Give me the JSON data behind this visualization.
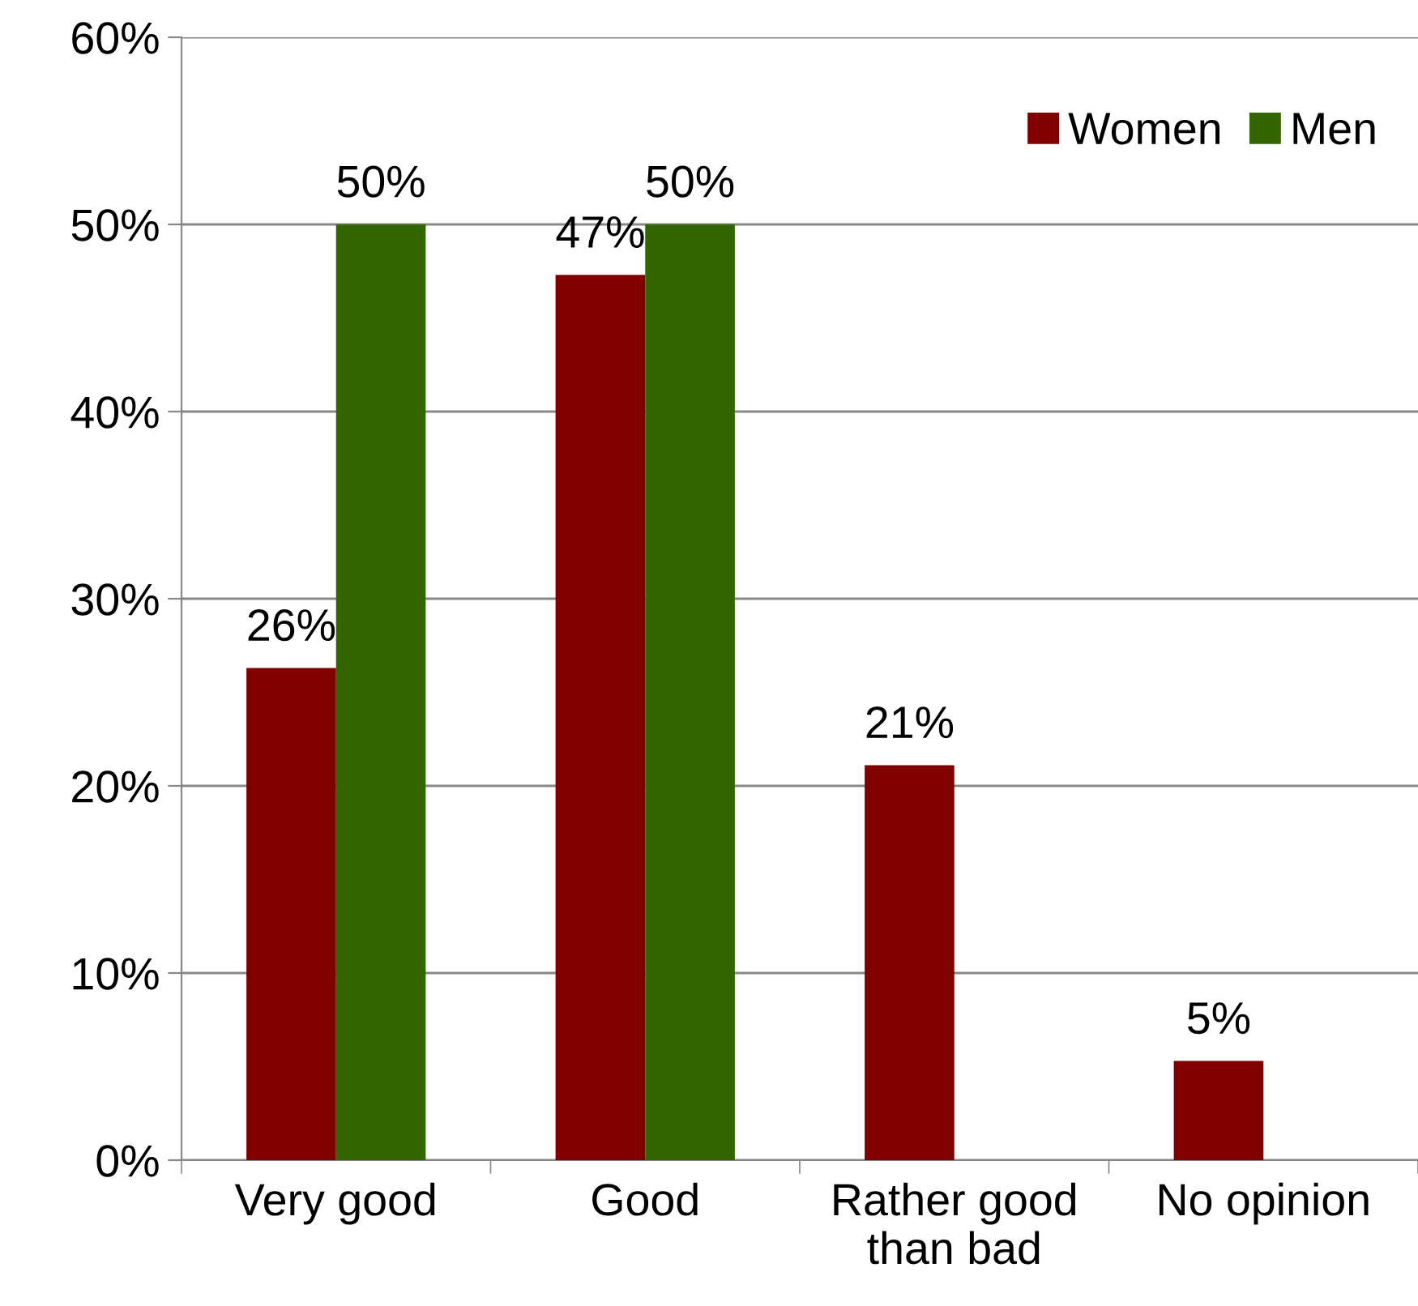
{
  "chart_data": {
    "type": "bar",
    "categories": [
      "Very good",
      "Good",
      "Rather good\nthan bad",
      "No opinion"
    ],
    "series": [
      {
        "name": "Women",
        "color": "#800000",
        "values": [
          26.3,
          47.3,
          21.1,
          5.3
        ],
        "value_labels": [
          "26%",
          "47%",
          "21%",
          "5%"
        ]
      },
      {
        "name": "Men",
        "color": "#336600",
        "values": [
          50,
          50,
          null,
          null
        ],
        "value_labels": [
          "50%",
          "50%",
          null,
          null
        ]
      }
    ],
    "ylim": [
      0,
      60
    ],
    "yticks": [
      {
        "value": 0,
        "label": "0%"
      },
      {
        "value": 10,
        "label": "10%"
      },
      {
        "value": 20,
        "label": "20%"
      },
      {
        "value": 30,
        "label": "30%"
      },
      {
        "value": 40,
        "label": "40%"
      },
      {
        "value": 50,
        "label": "50%"
      },
      {
        "value": 60,
        "label": "60%"
      }
    ],
    "grid": "y",
    "legend": "top right"
  }
}
